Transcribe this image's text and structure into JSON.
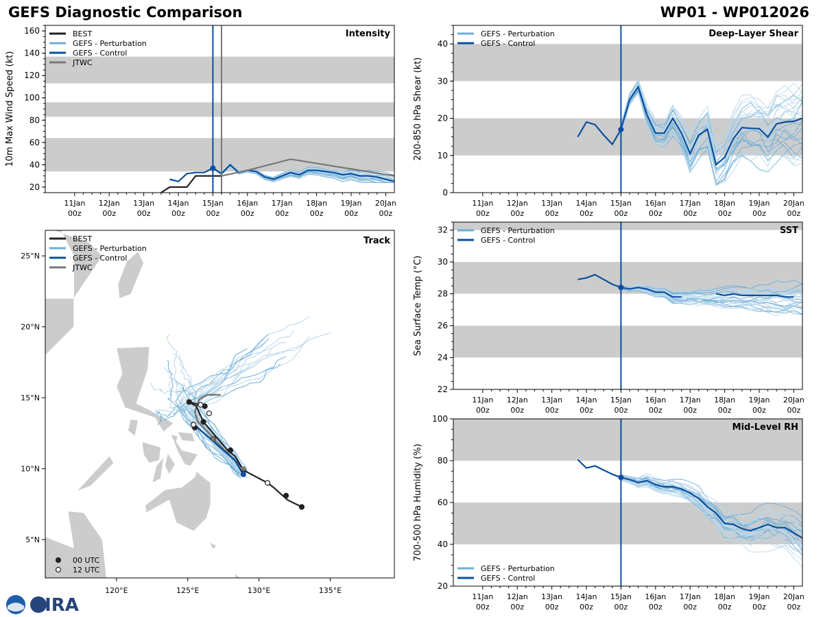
{
  "header": {
    "left_title": "GEFS Diagnostic Comparison",
    "right_title": "WP01 - WP012026"
  },
  "logo": {
    "text": "CIRA"
  },
  "time_axis": {
    "ticks": [
      {
        "day": 11,
        "line1": "11Jan",
        "line2": "00z"
      },
      {
        "day": 12,
        "line1": "12Jan",
        "line2": "00z"
      },
      {
        "day": 13,
        "line1": "13Jan",
        "line2": "00z"
      },
      {
        "day": 14,
        "line1": "14Jan",
        "line2": "00z"
      },
      {
        "day": 15,
        "line1": "15Jan",
        "line2": "00z"
      },
      {
        "day": 16,
        "line1": "16Jan",
        "line2": "00z"
      },
      {
        "day": 17,
        "line1": "17Jan",
        "line2": "00z"
      },
      {
        "day": 18,
        "line1": "18Jan",
        "line2": "00z"
      },
      {
        "day": 19,
        "line1": "19Jan",
        "line2": "00z"
      },
      {
        "day": 20,
        "line1": "20Jan",
        "line2": "00z"
      }
    ],
    "range": [
      10.15,
      20.25
    ],
    "init_day": 15.0
  },
  "colors": {
    "best": "#222222",
    "perturbation": "#6baed6",
    "perturbation_light": "#b9d6ea",
    "control": "#0a4f9e",
    "jtwc": "#777777",
    "band": "#cccccc",
    "land": "#cccccc"
  },
  "chart_data": [
    {
      "id": "intensity",
      "type": "line",
      "title": "Intensity",
      "ylabel": "10m Max Wind Speed (kt)",
      "ylim": [
        15,
        165
      ],
      "yticks": [
        20,
        40,
        60,
        80,
        100,
        120,
        140,
        160
      ],
      "bands": [
        [
          34,
          64
        ],
        [
          83,
          96
        ],
        [
          113,
          137
        ]
      ],
      "legend": [
        "BEST",
        "GEFS - Perturbation",
        "GEFS - Control",
        "JTWC"
      ],
      "jtwc_time_line": 15.25,
      "series": [
        {
          "name": "BEST",
          "x": [
            13.5,
            13.75,
            14.0,
            14.25,
            14.5,
            14.75,
            15.0,
            15.25
          ],
          "y": [
            15,
            20,
            20,
            20,
            30,
            30,
            30,
            30
          ]
        },
        {
          "name": "GEFS - Control",
          "x": [
            13.75,
            14.0,
            14.25,
            14.5,
            14.75,
            15.0,
            15.25,
            15.5,
            15.75,
            16.0,
            16.25,
            16.5,
            16.75,
            17.0,
            17.25,
            17.5,
            17.75,
            18.0,
            18.25,
            18.5,
            18.75,
            19.0,
            19.25,
            19.5,
            19.75,
            20.0,
            20.25
          ],
          "y": [
            27,
            25,
            32,
            33,
            33,
            37,
            32,
            40,
            33,
            35,
            34,
            29,
            27,
            30,
            33,
            31,
            35,
            35,
            34,
            33,
            31,
            32,
            30,
            30,
            29,
            27,
            25
          ]
        },
        {
          "name": "JTWC",
          "x": [
            15.25,
            16.0,
            17.25,
            18.25,
            19.25,
            20.25
          ],
          "y": [
            30,
            35,
            45,
            40,
            35,
            30
          ]
        }
      ],
      "perturbation_spread": {
        "x0": 15.0,
        "x1": 20.25,
        "min": 24,
        "max": 46
      }
    },
    {
      "id": "shear",
      "type": "line",
      "title": "Deep-Layer Shear",
      "ylabel": "200-850 hPa Shear (kt)",
      "ylim": [
        0,
        45
      ],
      "yticks": [
        0,
        10,
        20,
        30,
        40
      ],
      "bands": [
        [
          10,
          20
        ],
        [
          30,
          40
        ]
      ],
      "legend": [
        "GEFS - Perturbation",
        "GEFS - Control"
      ],
      "series": [
        {
          "name": "GEFS - Control",
          "x": [
            13.75,
            14.0,
            14.25,
            14.5,
            14.75,
            15.0,
            15.25,
            15.5,
            15.75,
            16.0,
            16.25,
            16.5,
            16.75,
            17.0,
            17.25,
            17.5,
            17.75,
            18.0,
            18.25,
            18.5,
            18.75,
            19.0,
            19.25,
            19.5,
            19.75,
            20.0,
            20.25
          ],
          "y": [
            15,
            19,
            18.3,
            15.5,
            13,
            17,
            25,
            28.5,
            21,
            16,
            16,
            20,
            16,
            10.5,
            15.5,
            17,
            7.5,
            9.5,
            14.5,
            17.5,
            17.3,
            17.2,
            15,
            18.5,
            19,
            19.2,
            20
          ]
        }
      ],
      "perturbation_spread": {
        "x0": 15.0,
        "x1": 20.25,
        "min": 2,
        "max": 42
      }
    },
    {
      "id": "sst",
      "type": "line",
      "title": "SST",
      "ylabel": "Sea Surface Temp (°C)",
      "ylim": [
        22,
        32.5
      ],
      "yticks": [
        22,
        24,
        26,
        28,
        30,
        32
      ],
      "bands": [
        [
          24,
          26
        ],
        [
          28,
          30
        ],
        [
          32,
          33
        ]
      ],
      "legend": [
        "GEFS - Perturbation",
        "GEFS - Control"
      ],
      "series": [
        {
          "name": "GEFS - Control",
          "x": [
            13.75,
            14.0,
            14.25,
            14.5,
            14.75,
            15.0,
            15.25,
            15.5,
            15.75,
            16.0,
            16.25,
            16.5,
            16.75
          ],
          "y": [
            28.9,
            29.0,
            29.2,
            28.9,
            28.6,
            28.4,
            28.3,
            28.4,
            28.3,
            28.1,
            28.1,
            27.8,
            27.8
          ]
        },
        {
          "name": "GEFS - Control (later)",
          "x": [
            17.75,
            18.0,
            18.25,
            18.5,
            18.75,
            19.0,
            19.25,
            19.5,
            19.75,
            20.0
          ],
          "y": [
            28.0,
            27.9,
            28.0,
            27.9,
            27.9,
            27.9,
            27.9,
            27.9,
            27.8,
            27.8
          ]
        }
      ],
      "perturbation_spread": {
        "x0": 15.0,
        "x1": 20.25,
        "min": 25.8,
        "max": 29.5
      }
    },
    {
      "id": "rh",
      "type": "line",
      "title": "Mid-Level RH",
      "ylabel": "700-500 hPa Humidity (%)",
      "ylim": [
        20,
        100
      ],
      "yticks": [
        20,
        40,
        60,
        80,
        100
      ],
      "bands": [
        [
          40,
          60
        ],
        [
          80,
          100
        ]
      ],
      "legend": [
        "GEFS - Perturbation",
        "GEFS - Control"
      ],
      "series": [
        {
          "name": "GEFS - Control",
          "x": [
            13.75,
            14.0,
            14.25,
            14.5,
            14.75,
            15.0,
            15.25,
            15.5,
            15.75,
            16.0,
            16.25,
            16.5,
            16.75,
            17.0,
            17.25,
            17.5,
            17.75,
            18.0,
            18.25,
            18.5,
            18.75,
            19.0,
            19.25,
            19.5,
            19.75,
            20.0,
            20.25
          ],
          "y": [
            80.5,
            76.5,
            77.5,
            75.5,
            73.5,
            72,
            71,
            69.5,
            70.5,
            68.5,
            67.5,
            67.5,
            66.5,
            64.5,
            62,
            58,
            55,
            50,
            49.5,
            47.5,
            46.5,
            48,
            49.5,
            48,
            48,
            45.5,
            43
          ]
        }
      ],
      "perturbation_spread": {
        "x0": 15.0,
        "x1": 20.25,
        "min": 29,
        "max": 75
      }
    },
    {
      "id": "track",
      "type": "map",
      "title": "Track",
      "lon_range": [
        115.0,
        139.5
      ],
      "lat_range": [
        2.3,
        26.8
      ],
      "lon_ticks": [
        {
          "v": 120,
          "label": "120°E"
        },
        {
          "v": 125,
          "label": "125°E"
        },
        {
          "v": 130,
          "label": "130°E"
        },
        {
          "v": 135,
          "label": "135°E"
        }
      ],
      "lat_ticks": [
        {
          "v": 5,
          "label": "5°N"
        },
        {
          "v": 10,
          "label": "10°N"
        },
        {
          "v": 15,
          "label": "15°N"
        },
        {
          "v": 20,
          "label": "20°N"
        },
        {
          "v": 25,
          "label": "25°N"
        }
      ],
      "legend": [
        "BEST",
        "GEFS - Perturbation",
        "GEFS - Control",
        "JTWC"
      ],
      "point_legend": [
        "00 UTC",
        "12 UTC"
      ],
      "best_track": {
        "lon": [
          133.0,
          132.0,
          131.0,
          130.6,
          128.9,
          128.3,
          127.8,
          126.1,
          125.6,
          125.1,
          125.5,
          126.2
        ],
        "lat": [
          7.3,
          7.8,
          8.7,
          9.0,
          9.9,
          10.9,
          11.3,
          13.3,
          14.4,
          14.7,
          14.6,
          14.3
        ]
      },
      "best_points": [
        {
          "lon": 133.0,
          "lat": 7.3,
          "utc": "00"
        },
        {
          "lon": 131.9,
          "lat": 8.1,
          "utc": "00"
        },
        {
          "lon": 130.6,
          "lat": 9.0,
          "utc": "12"
        },
        {
          "lon": 128.9,
          "lat": 9.9,
          "utc": "00"
        },
        {
          "lon": 128.0,
          "lat": 11.3,
          "utc": "00"
        },
        {
          "lon": 126.1,
          "lat": 13.3,
          "utc": "00"
        },
        {
          "lon": 125.5,
          "lat": 12.9,
          "utc": "00"
        },
        {
          "lon": 125.1,
          "lat": 14.7,
          "utc": "00"
        },
        {
          "lon": 126.2,
          "lat": 14.4,
          "utc": "00"
        },
        {
          "lon": 125.9,
          "lat": 14.5,
          "utc": "12"
        },
        {
          "lon": 126.5,
          "lat": 13.9,
          "utc": "12"
        },
        {
          "lon": 125.4,
          "lat": 13.1,
          "utc": "12"
        },
        {
          "lon": 126.8,
          "lat": 12.1,
          "utc": "12"
        }
      ],
      "control_track": {
        "lon": [
          128.9,
          128.3,
          127.5,
          126.6,
          125.9,
          125.6,
          125.3
        ],
        "lat": [
          9.6,
          10.6,
          11.3,
          12.1,
          12.7,
          13.0,
          13.3
        ]
      },
      "jtwc_track": {
        "lon": [
          128.9,
          128.0,
          127.0,
          126.3,
          125.7,
          125.5,
          125.8,
          126.4,
          127.3
        ],
        "lat": [
          10.0,
          10.9,
          11.9,
          12.7,
          13.3,
          14.0,
          14.9,
          15.2,
          15.2
        ]
      },
      "jtwc_points": [
        {
          "lon": 128.9,
          "lat": 10.0
        },
        {
          "lon": 126.8,
          "lat": 12.1
        }
      ],
      "control_point": {
        "lon": 128.9,
        "lat": 9.6
      }
    }
  ]
}
